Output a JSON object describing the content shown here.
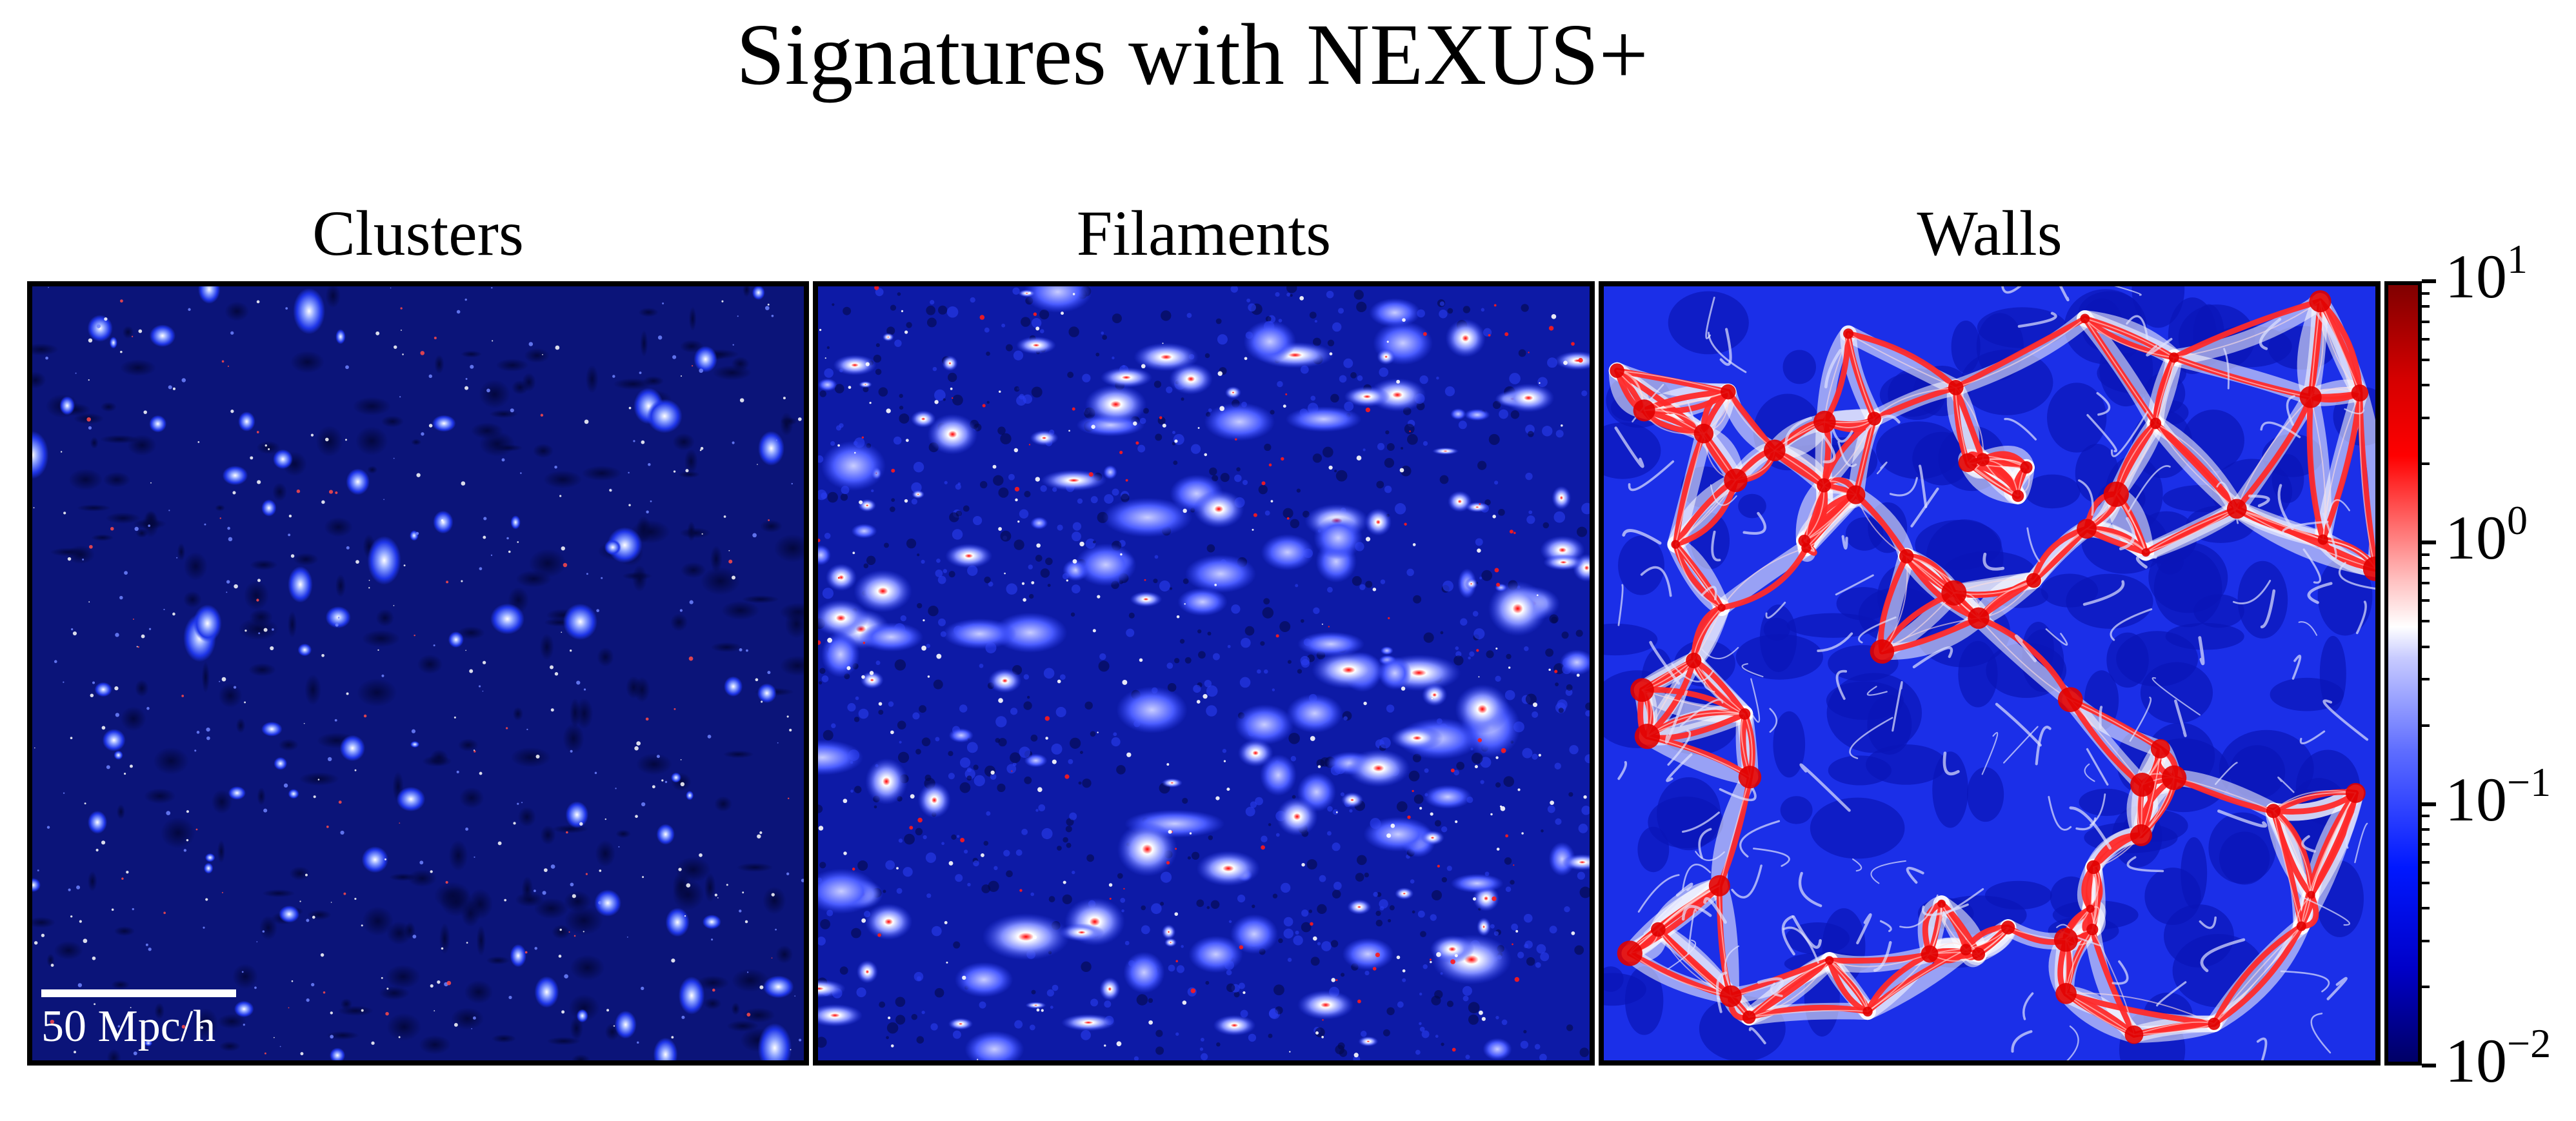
{
  "title": "Signatures with NEXUS+",
  "panels": [
    {
      "label": "Clusters",
      "background": "#0b1479"
    },
    {
      "label": "Filaments",
      "background": "#0d1aa6"
    },
    {
      "label": "Walls",
      "background": "#1b2fe8"
    }
  ],
  "scale_bar": {
    "label": "50 Mpc/h"
  },
  "colorbar": {
    "scale": "log",
    "colormap": "seismic",
    "ticks": [
      {
        "base": "10",
        "exponent": "1"
      },
      {
        "base": "10",
        "exponent": "0"
      },
      {
        "base": "10",
        "exponent": "−1"
      },
      {
        "base": "10",
        "exponent": "−2"
      }
    ]
  }
}
